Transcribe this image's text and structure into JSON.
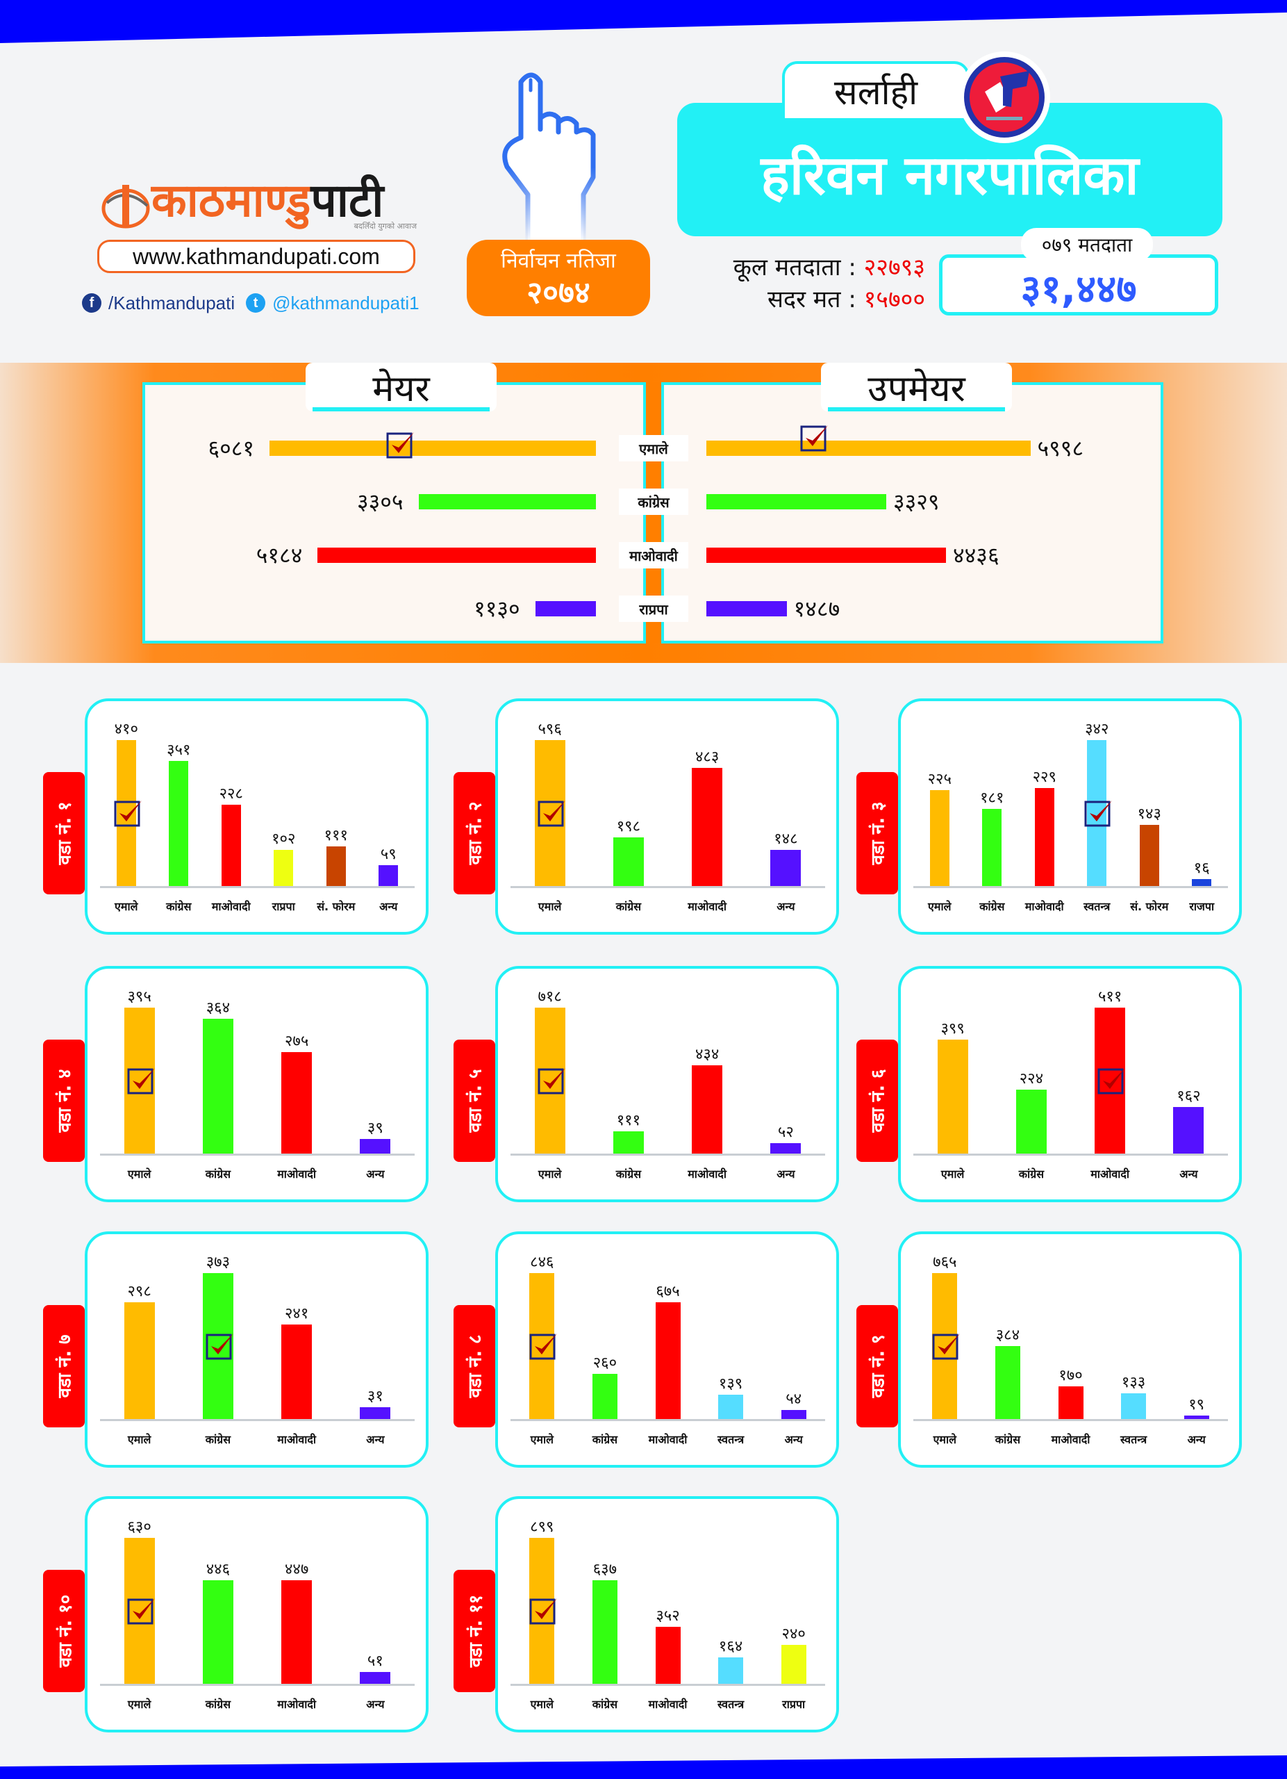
{
  "brand": {
    "logo_part1": "काठमाण्डु",
    "logo_part2": "पाटी",
    "tagline": "बदलिँदो युगको आवाज",
    "url": "www.kathmandupati.com",
    "facebook": "/Kathmandupati",
    "twitter": "@kathmandupati1",
    "orange": "#f26522",
    "blue": "#0000ff"
  },
  "result_badge": {
    "line1": "निर्वाचन नतिजा",
    "line2": "२०७४"
  },
  "district": "सर्लाही",
  "municipality": "हरिवन नगरपालिका",
  "stats": {
    "total_voters_label": "कूल मतदाता",
    "total_voters": "२२७९३",
    "valid_votes_label": "सदर मत",
    "valid_votes": "१५७००",
    "separator": ":"
  },
  "voters_079": {
    "label": "०७९ मतदाता",
    "value": "३१,४४७"
  },
  "party_colors": {
    "एमाले": "#ffbb00",
    "कांग्रेस": "#33ff11",
    "माओवादी": "#ff0000",
    "राप्रपा": "#eeff11",
    "संफोरम": "#c84400",
    "अन्य": "#5511ff",
    "स्वतन्त्र": "#55ddff",
    "राजपा": "#1a44dd",
    "राप्रपा_main": "#5511ff"
  },
  "chart_data": [
    {
      "type": "bar",
      "orientation": "horizontal",
      "title": "मेयर",
      "categories": [
        "एमाले",
        "कांग्रेस",
        "माओवादी",
        "राप्रपा"
      ],
      "values": [
        6081,
        3305,
        5184,
        1130
      ],
      "labels": [
        "६०८१",
        "३३०५",
        "५१८४",
        "११३०"
      ],
      "winner": "एमाले",
      "xlim": [
        0,
        6081
      ]
    },
    {
      "type": "bar",
      "orientation": "horizontal",
      "title": "उपमेयर",
      "categories": [
        "एमाले",
        "कांग्रेस",
        "माओवादी",
        "राप्रपा"
      ],
      "values": [
        5998,
        3329,
        4436,
        1487
      ],
      "labels": [
        "५९९८",
        "३३२९",
        "४४३६",
        "१४८७"
      ],
      "winner": "एमाले",
      "xlim": [
        0,
        6081
      ]
    },
    {
      "type": "bar",
      "title": "वडा नं. १",
      "categories": [
        "एमाले",
        "कांग्रेस",
        "माओवादी",
        "राप्रपा",
        "सं. फोरम",
        "अन्य"
      ],
      "colors": [
        "#ffbb00",
        "#33ff11",
        "#ff0000",
        "#eeff11",
        "#c84400",
        "#5511ff"
      ],
      "values": [
        410,
        351,
        228,
        102,
        111,
        59
      ],
      "labels": [
        "४१०",
        "३५१",
        "२२८",
        "१०२",
        "१११",
        "५९"
      ],
      "winner_index": 0
    },
    {
      "type": "bar",
      "title": "वडा नं. २",
      "categories": [
        "एमाले",
        "कांग्रेस",
        "माओवादी",
        "अन्य"
      ],
      "colors": [
        "#ffbb00",
        "#33ff11",
        "#ff0000",
        "#5511ff"
      ],
      "values": [
        596,
        198,
        483,
        148
      ],
      "labels": [
        "५९६",
        "१९८",
        "४८३",
        "१४८"
      ],
      "winner_index": 0
    },
    {
      "type": "bar",
      "title": "वडा नं. ३",
      "categories": [
        "एमाले",
        "कांग्रेस",
        "माओवादी",
        "स्वतन्त्र",
        "सं. फोरम",
        "राजपा"
      ],
      "colors": [
        "#ffbb00",
        "#33ff11",
        "#ff0000",
        "#55ddff",
        "#c84400",
        "#1a44dd"
      ],
      "values": [
        225,
        181,
        229,
        342,
        143,
        16
      ],
      "labels": [
        "२२५",
        "१८१",
        "२२९",
        "३४२",
        "१४३",
        "१६"
      ],
      "winner_index": 3
    },
    {
      "type": "bar",
      "title": "वडा नं. ४",
      "categories": [
        "एमाले",
        "कांग्रेस",
        "माओवादी",
        "अन्य"
      ],
      "colors": [
        "#ffbb00",
        "#33ff11",
        "#ff0000",
        "#5511ff"
      ],
      "values": [
        395,
        364,
        275,
        39
      ],
      "labels": [
        "३९५",
        "३६४",
        "२७५",
        "३९"
      ],
      "winner_index": 0
    },
    {
      "type": "bar",
      "title": "वडा नं. ५",
      "categories": [
        "एमाले",
        "कांग्रेस",
        "माओवादी",
        "अन्य"
      ],
      "colors": [
        "#ffbb00",
        "#33ff11",
        "#ff0000",
        "#5511ff"
      ],
      "values": [
        718,
        111,
        434,
        52
      ],
      "labels": [
        "७१८",
        "१११",
        "४३४",
        "५२"
      ],
      "winner_index": 0
    },
    {
      "type": "bar",
      "title": "वडा नं. ६",
      "categories": [
        "एमाले",
        "कांग्रेस",
        "माओवादी",
        "अन्य"
      ],
      "colors": [
        "#ffbb00",
        "#33ff11",
        "#ff0000",
        "#5511ff"
      ],
      "values": [
        399,
        224,
        511,
        162
      ],
      "labels": [
        "३९९",
        "२२४",
        "५११",
        "१६२"
      ],
      "winner_index": 2
    },
    {
      "type": "bar",
      "title": "वडा नं. ७",
      "categories": [
        "एमाले",
        "कांग्रेस",
        "माओवादी",
        "अन्य"
      ],
      "colors": [
        "#ffbb00",
        "#33ff11",
        "#ff0000",
        "#5511ff"
      ],
      "values": [
        298,
        373,
        241,
        31
      ],
      "labels": [
        "२९८",
        "३७३",
        "२४१",
        "३१"
      ],
      "winner_index": 1
    },
    {
      "type": "bar",
      "title": "वडा नं. ८",
      "categories": [
        "एमाले",
        "कांग्रेस",
        "माओवादी",
        "स्वतन्त्र",
        "अन्य"
      ],
      "colors": [
        "#ffbb00",
        "#33ff11",
        "#ff0000",
        "#55ddff",
        "#5511ff"
      ],
      "values": [
        846,
        260,
        675,
        139,
        54
      ],
      "labels": [
        "८४६",
        "२६०",
        "६७५",
        "१३९",
        "५४"
      ],
      "winner_index": 0
    },
    {
      "type": "bar",
      "title": "वडा नं. ९",
      "categories": [
        "एमाले",
        "कांग्रेस",
        "माओवादी",
        "स्वतन्त्र",
        "अन्य"
      ],
      "colors": [
        "#ffbb00",
        "#33ff11",
        "#ff0000",
        "#55ddff",
        "#5511ff"
      ],
      "values": [
        765,
        384,
        170,
        133,
        19
      ],
      "labels": [
        "७६५",
        "३८४",
        "१७०",
        "१३३",
        "१९"
      ],
      "winner_index": 0
    },
    {
      "type": "bar",
      "title": "वडा नं. १०",
      "categories": [
        "एमाले",
        "कांग्रेस",
        "माओवादी",
        "अन्य"
      ],
      "colors": [
        "#ffbb00",
        "#33ff11",
        "#ff0000",
        "#5511ff"
      ],
      "values": [
        630,
        446,
        447,
        51
      ],
      "labels": [
        "६३०",
        "४४६",
        "४४७",
        "५१"
      ],
      "winner_index": 0
    },
    {
      "type": "bar",
      "title": "वडा नं. ११",
      "categories": [
        "एमाले",
        "कांग्रेस",
        "माओवादी",
        "स्वतन्त्र",
        "राप्रपा"
      ],
      "colors": [
        "#ffbb00",
        "#33ff11",
        "#ff0000",
        "#55ddff",
        "#eeff11"
      ],
      "values": [
        899,
        637,
        352,
        164,
        240
      ],
      "labels": [
        "८९९",
        "६३७",
        "३५२",
        "१६४",
        "२४०"
      ],
      "winner_index": 0
    }
  ]
}
